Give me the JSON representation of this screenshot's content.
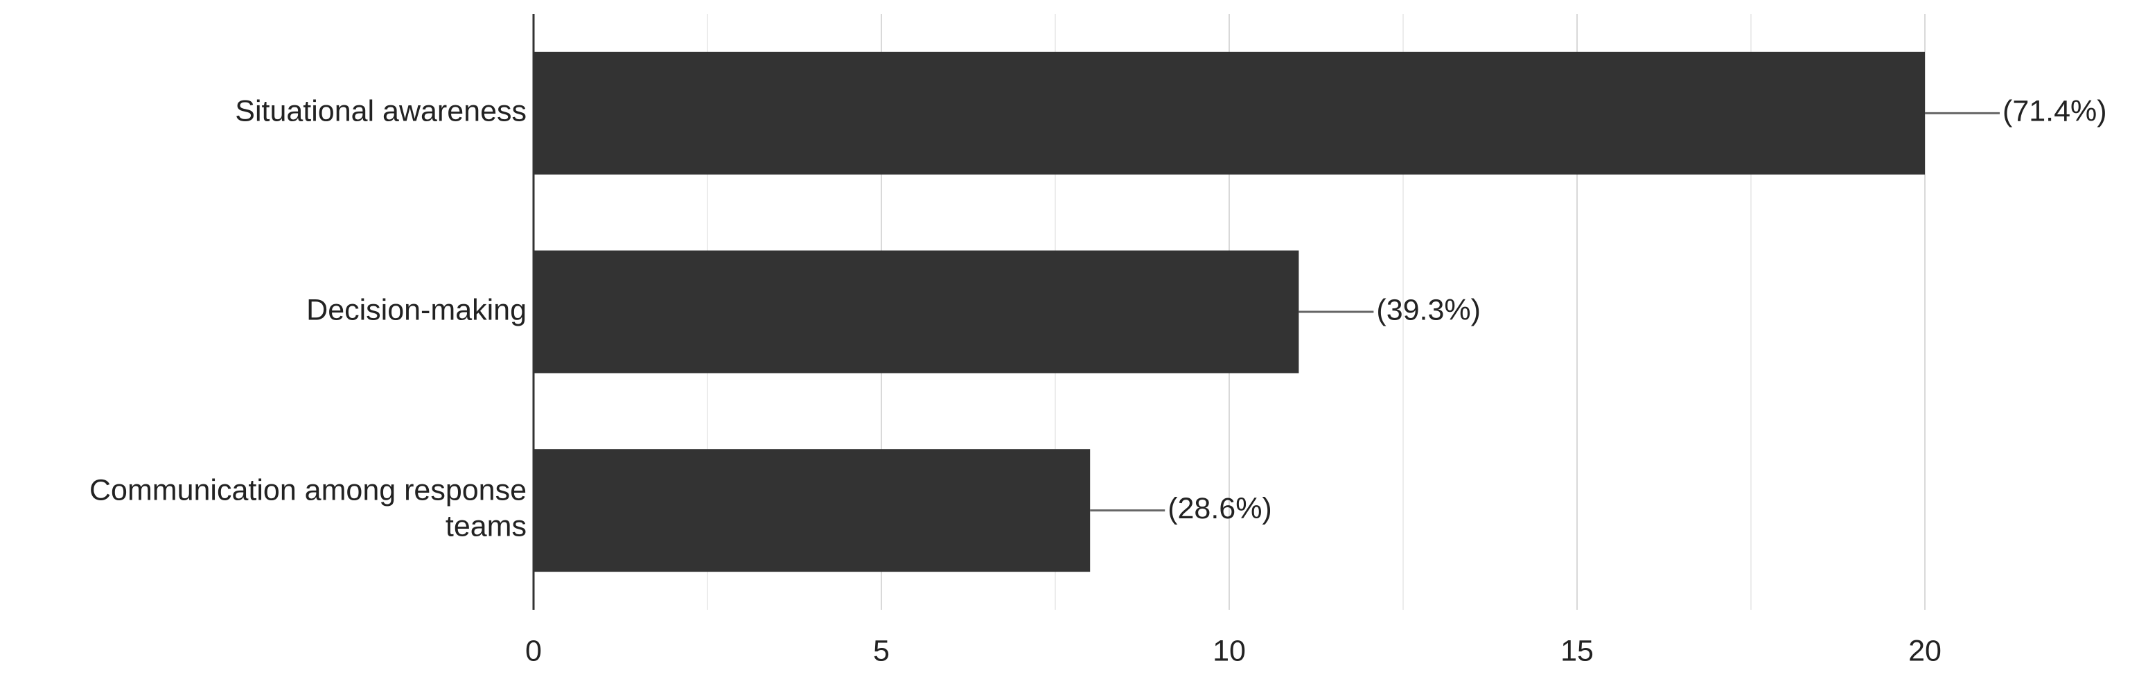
{
  "chart_data": {
    "type": "bar",
    "orientation": "horizontal",
    "categories": [
      "Situational awareness",
      "Decision-making",
      "Communication among response teams"
    ],
    "values": [
      20,
      11,
      8
    ],
    "percent_labels": [
      "(71.4%)",
      "(39.3%)",
      "(28.6%)"
    ],
    "color": "#333333",
    "xlim": [
      0,
      20
    ],
    "xticks": [
      0,
      5,
      10,
      15,
      20
    ],
    "grid": true
  }
}
